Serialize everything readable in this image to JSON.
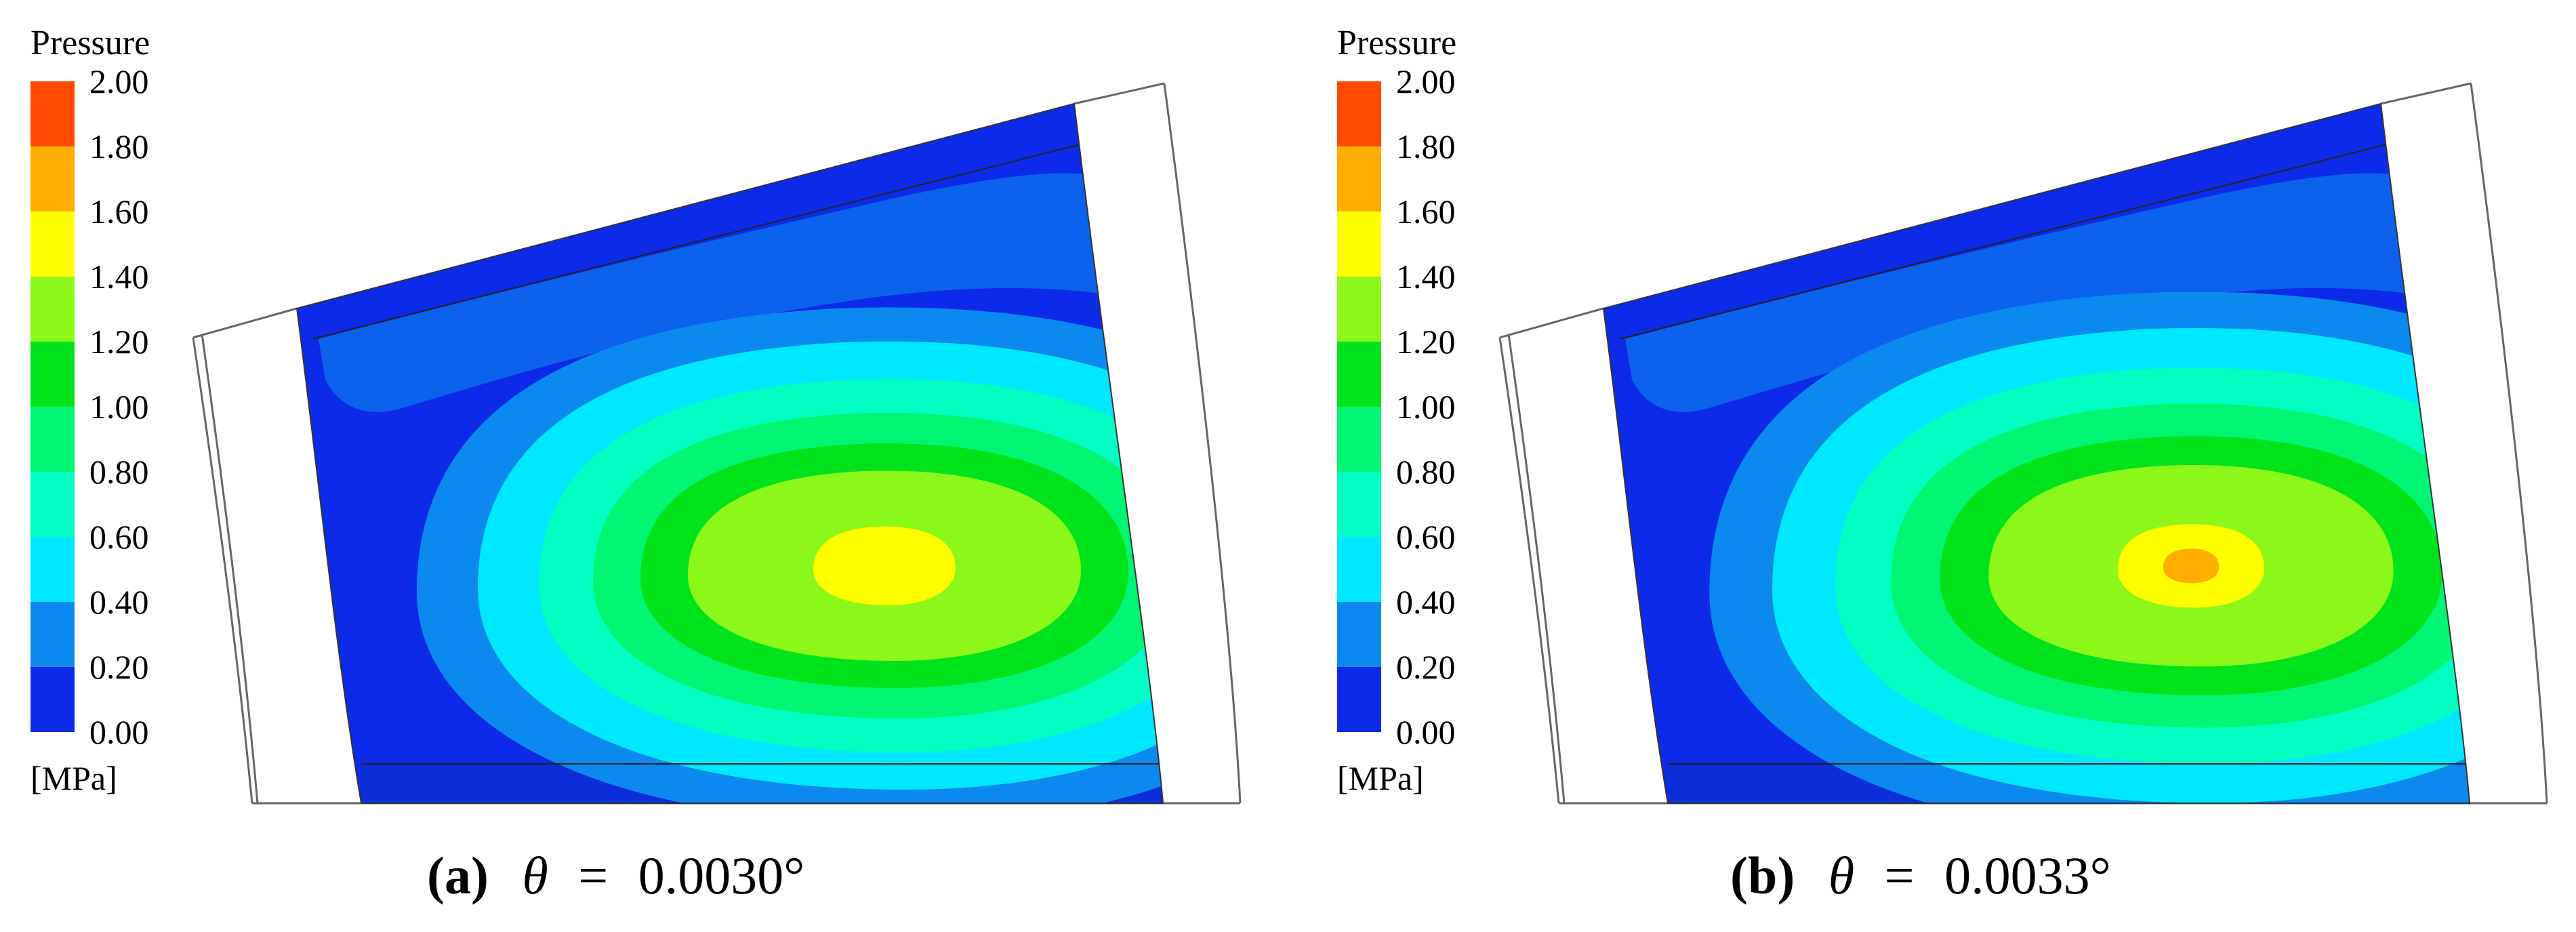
{
  "figure": {
    "panels": [
      {
        "id": "a",
        "legend": {
          "title": "Pressure",
          "unit": "[MPa]",
          "ticks": [
            "2.00",
            "1.80",
            "1.60",
            "1.40",
            "1.20",
            "1.00",
            "0.80",
            "0.60",
            "0.40",
            "0.20",
            "0.00"
          ]
        },
        "caption": {
          "label": "(a)",
          "symbol": "θ",
          "eq": "=",
          "value": "0.0030°"
        },
        "peak_level": 7
      },
      {
        "id": "b",
        "legend": {
          "title": "Pressure",
          "unit": "[MPa]",
          "ticks": [
            "2.00",
            "1.80",
            "1.60",
            "1.40",
            "1.20",
            "1.00",
            "0.80",
            "0.60",
            "0.40",
            "0.20",
            "0.00"
          ]
        },
        "caption": {
          "label": "(b)",
          "symbol": "θ",
          "eq": "=",
          "value": "0.0033°"
        },
        "peak_level": 8
      }
    ],
    "colormap": [
      "#0d2ae8",
      "#0b89ef",
      "#00e8ff",
      "#00ffc0",
      "#00f573",
      "#00e31b",
      "#8cf81a",
      "#ffff00",
      "#ffad00",
      "#ff4a00"
    ]
  }
}
